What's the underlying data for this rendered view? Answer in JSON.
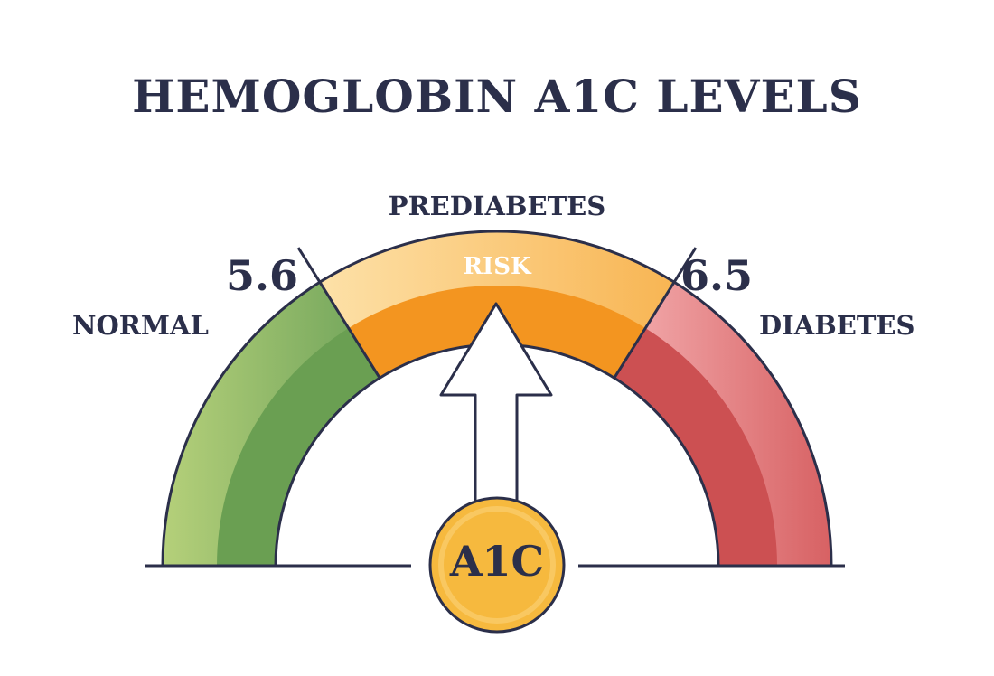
{
  "title": "HEMOGLOBIN A1C LEVELS",
  "zones": {
    "normal": "NORMAL",
    "prediabetes": "PREDIABETES",
    "diabetes": "DIABETES"
  },
  "thresholds": {
    "low": "5.6",
    "high": "6.5"
  },
  "risk_label": "RISK",
  "badge_label": "A1C",
  "colors": {
    "outline": "#2b2f4a",
    "normal_light": "#a9c96b",
    "normal_dark": "#6a9f52",
    "prediabetes_light": "#fdd48a",
    "prediabetes_dark": "#f39520",
    "diabetes_light": "#f2a5a8",
    "diabetes_dark": "#cc5052",
    "badge_fill": "#f6b93e",
    "arrow_fill": "#ffffff"
  }
}
